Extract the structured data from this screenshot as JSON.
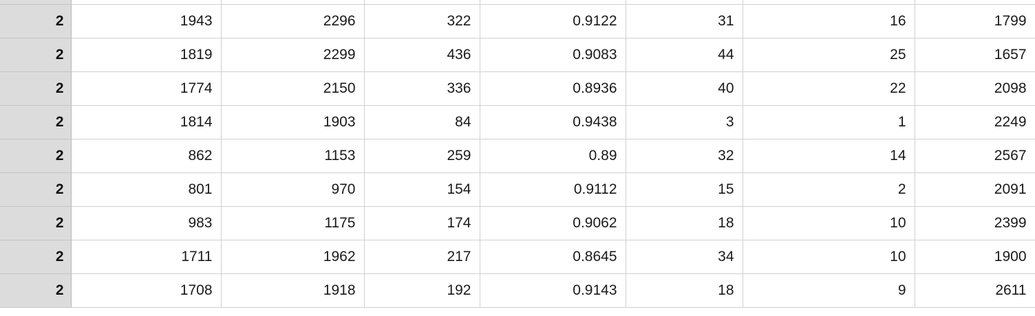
{
  "sheet": {
    "rows": [
      {
        "header": "",
        "cells": [
          "",
          "",
          "",
          "",
          "",
          "",
          ""
        ]
      },
      {
        "header": "2",
        "cells": [
          "1943",
          "2296",
          "322",
          "0.9122",
          "31",
          "16",
          "1799"
        ]
      },
      {
        "header": "2",
        "cells": [
          "1819",
          "2299",
          "436",
          "0.9083",
          "44",
          "25",
          "1657"
        ]
      },
      {
        "header": "2",
        "cells": [
          "1774",
          "2150",
          "336",
          "0.8936",
          "40",
          "22",
          "2098"
        ]
      },
      {
        "header": "2",
        "cells": [
          "1814",
          "1903",
          "84",
          "0.9438",
          "3",
          "1",
          "2249"
        ]
      },
      {
        "header": "2",
        "cells": [
          "862",
          "1153",
          "259",
          "0.89",
          "32",
          "14",
          "2567"
        ]
      },
      {
        "header": "2",
        "cells": [
          "801",
          "970",
          "154",
          "0.9112",
          "15",
          "2",
          "2091"
        ]
      },
      {
        "header": "2",
        "cells": [
          "983",
          "1175",
          "174",
          "0.9062",
          "18",
          "10",
          "2399"
        ]
      },
      {
        "header": "2",
        "cells": [
          "1711",
          "1962",
          "217",
          "0.8645",
          "34",
          "10",
          "1900"
        ]
      },
      {
        "header": "2",
        "cells": [
          "1708",
          "1918",
          "192",
          "0.9143",
          "18",
          "9",
          "2611"
        ]
      }
    ]
  }
}
